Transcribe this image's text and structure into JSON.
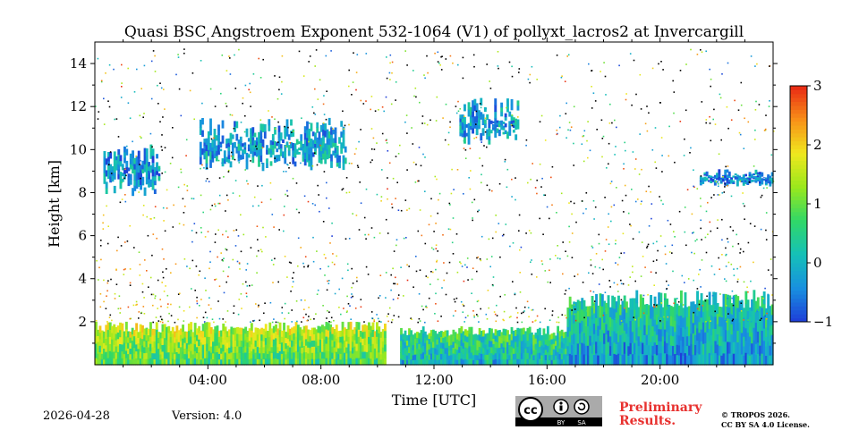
{
  "chart_data": {
    "type": "heatmap",
    "title": "Quasi BSC Angstroem Exponent 532-1064 (V1) of pollyxt_lacros2 at Invercargill",
    "xlabel": "Time [UTC]",
    "ylabel": "Height [km]",
    "xlim": [
      0,
      24
    ],
    "ylim": [
      0,
      15
    ],
    "x_ticks": [
      4,
      8,
      12,
      16,
      20
    ],
    "x_tick_labels": [
      "04:00",
      "08:00",
      "12:00",
      "16:00",
      "20:00"
    ],
    "y_ticks": [
      2,
      4,
      6,
      8,
      10,
      12,
      14
    ],
    "y_tick_labels": [
      "2",
      "4",
      "6",
      "8",
      "10",
      "12",
      "14"
    ],
    "colorbar": {
      "range": [
        -1,
        3
      ],
      "ticks": [
        -1,
        0,
        1,
        2,
        3
      ],
      "tick_labels": [
        "−1",
        "0",
        "1",
        "2",
        "3"
      ],
      "colormap": [
        "#1e3cd8",
        "#1890e0",
        "#15c0b8",
        "#30d868",
        "#9ae81c",
        "#f0e81e",
        "#f89018",
        "#e82814"
      ]
    },
    "features": [
      {
        "name": "boundary layer (surface values)",
        "t_start": 0,
        "t_end": 10.3,
        "top_km": 2.0,
        "value": 0.8
      },
      {
        "name": "boundary layer",
        "t_start": 10.8,
        "t_end": 16.7,
        "top_km": 1.8,
        "value": 0.0
      },
      {
        "name": "boundary layer",
        "t_start": 16.7,
        "t_end": 24.0,
        "top_km": 3.5,
        "value": -0.3
      },
      {
        "name": "cirrus layer",
        "t_start": 0.3,
        "t_end": 2.3,
        "bottom_km": 7.8,
        "top_km": 10.5,
        "value": -0.3
      },
      {
        "name": "cirrus layer",
        "t_start": 3.7,
        "t_end": 8.9,
        "bottom_km": 9.0,
        "top_km": 11.5,
        "value": -0.2
      },
      {
        "name": "cirrus layer",
        "t_start": 12.9,
        "t_end": 15.0,
        "bottom_km": 10.2,
        "top_km": 12.4,
        "value": -0.2
      },
      {
        "name": "cirrus layer",
        "t_start": 21.4,
        "t_end": 24.0,
        "bottom_km": 8.3,
        "top_km": 9.1,
        "value": -0.4
      }
    ]
  },
  "footer": {
    "date": "2026-04-28",
    "version": "Version: 4.0",
    "preliminary_line1": "Preliminary",
    "preliminary_line2": "Results.",
    "copyright_line1": "© TROPOS 2026.",
    "copyright_line2": "CC BY SA 4.0 License.",
    "license_badge": {
      "by": "BY",
      "sa": "SA"
    }
  }
}
